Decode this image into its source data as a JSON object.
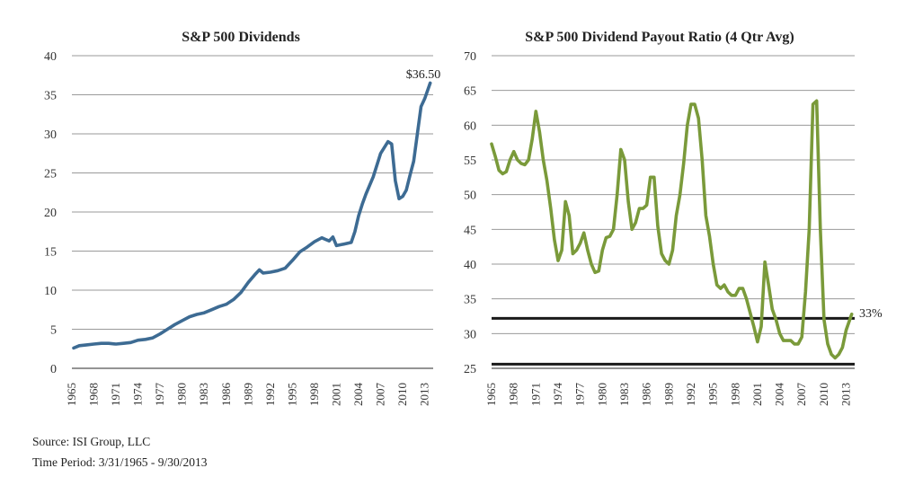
{
  "chart_data": [
    {
      "type": "line",
      "title": "S&P 500 Dividends",
      "xlabel": "",
      "ylabel": "",
      "ylim": [
        0,
        40
      ],
      "yticks": [
        "0",
        "5",
        "10",
        "15",
        "20",
        "25",
        "30",
        "35",
        "40"
      ],
      "xticks": [
        "1965",
        "1968",
        "1971",
        "1974",
        "1977",
        "1980",
        "1983",
        "1986",
        "1989",
        "1992",
        "1995",
        "1998",
        "2001",
        "2004",
        "2007",
        "2010",
        "2013"
      ],
      "grid": true,
      "color": "#3d6b93",
      "annotation": "$36.50",
      "series": [
        {
          "x": [
            1965.25,
            1966,
            1967,
            1968,
            1969,
            1970,
            1971,
            1972,
            1973,
            1974,
            1975,
            1976,
            1977,
            1978,
            1979,
            1980,
            1981,
            1982,
            1983,
            1984,
            1985,
            1986,
            1987,
            1988,
            1989,
            1990,
            1990.5,
            1991,
            1992,
            1993,
            1994,
            1995,
            1996,
            1997,
            1998,
            1999,
            1999.5,
            2000,
            2000.5,
            2001,
            2002,
            2003,
            2003.5,
            2004,
            2004.5,
            2005,
            2006,
            2007,
            2008,
            2008.5,
            2009,
            2009.5,
            2010,
            2010.5,
            2011,
            2011.5,
            2012,
            2012.5,
            2013,
            2013.75
          ],
          "y": [
            2.6,
            2.9,
            3.0,
            3.1,
            3.2,
            3.2,
            3.1,
            3.2,
            3.3,
            3.6,
            3.7,
            3.9,
            4.4,
            5.0,
            5.6,
            6.1,
            6.6,
            6.9,
            7.1,
            7.5,
            7.9,
            8.2,
            8.8,
            9.7,
            11.0,
            12.1,
            12.6,
            12.2,
            12.3,
            12.5,
            12.8,
            13.8,
            14.9,
            15.5,
            16.2,
            16.7,
            16.5,
            16.3,
            16.8,
            15.7,
            15.9,
            16.1,
            17.5,
            19.5,
            21.0,
            22.3,
            24.5,
            27.5,
            29.0,
            28.7,
            24.0,
            21.7,
            22.0,
            22.8,
            24.7,
            26.5,
            30.0,
            33.5,
            34.5,
            36.5
          ]
        }
      ]
    },
    {
      "type": "line",
      "title": "S&P 500 Dividend Payout Ratio (4 Qtr Avg)",
      "xlabel": "",
      "ylabel": "",
      "ylim": [
        25,
        70
      ],
      "yticks": [
        "25",
        "30",
        "35",
        "40",
        "45",
        "50",
        "55",
        "60",
        "65",
        "70"
      ],
      "xticks": [
        "1965",
        "1968",
        "1971",
        "1974",
        "1977",
        "1980",
        "1983",
        "1986",
        "1989",
        "1992",
        "1995",
        "1998",
        "2001",
        "2004",
        "2007",
        "2010",
        "2013"
      ],
      "grid": true,
      "color": "#7a9a3a",
      "annotation": "33%",
      "reference_lines": [
        32.2,
        25.6
      ],
      "series": [
        {
          "x": [
            1965,
            1965.5,
            1966,
            1966.5,
            1967,
            1967.5,
            1968,
            1968.5,
            1969,
            1969.5,
            1970,
            1970.5,
            1971,
            1971.5,
            1972,
            1972.5,
            1973,
            1973.5,
            1974,
            1974.5,
            1975,
            1975.5,
            1976,
            1976.5,
            1977,
            1977.5,
            1978,
            1978.5,
            1979,
            1979.5,
            1980,
            1980.5,
            1981,
            1981.5,
            1982,
            1982.5,
            1983,
            1983.5,
            1984,
            1984.5,
            1985,
            1985.5,
            1986,
            1986.5,
            1987,
            1987.5,
            1988,
            1988.5,
            1989,
            1989.5,
            1990,
            1990.5,
            1991,
            1991.5,
            1992,
            1992.5,
            1993,
            1993.5,
            1994,
            1994.5,
            1995,
            1995.5,
            1996,
            1996.5,
            1997,
            1997.5,
            1998,
            1998.5,
            1999,
            1999.5,
            2000,
            2000.5,
            2001,
            2001.5,
            2002,
            2002.5,
            2003,
            2003.5,
            2004,
            2004.5,
            2005,
            2005.5,
            2006,
            2006.5,
            2007,
            2007.5,
            2008,
            2008.5,
            2009,
            2009.5,
            2010,
            2010.5,
            2011,
            2011.5,
            2012,
            2012.5,
            2013,
            2013.75
          ],
          "y": [
            57.3,
            55.5,
            53.5,
            53.0,
            53.3,
            55.0,
            56.2,
            55.0,
            54.5,
            54.3,
            55.0,
            58.0,
            62.0,
            59.0,
            55.0,
            52.0,
            48.0,
            43.5,
            40.5,
            42.0,
            49.0,
            47.0,
            41.5,
            42.0,
            43.0,
            44.5,
            42.0,
            40.0,
            38.8,
            39.0,
            42.0,
            43.8,
            44.0,
            45.0,
            50.0,
            56.5,
            55.0,
            49.0,
            45.0,
            46.0,
            48.0,
            48.0,
            48.5,
            52.5,
            52.5,
            45.5,
            41.5,
            40.5,
            40.0,
            42.0,
            47.0,
            50.0,
            54.5,
            60.0,
            63.0,
            63.0,
            61.0,
            55.0,
            47.0,
            44.0,
            40.0,
            37.0,
            36.5,
            37.0,
            36.0,
            35.5,
            35.5,
            36.5,
            36.5,
            35.0,
            33.0,
            31.0,
            28.8,
            31.0,
            40.3,
            37.0,
            33.5,
            32.0,
            30.0,
            29.0,
            29.0,
            29.0,
            28.5,
            28.5,
            29.5,
            36.0,
            45.0,
            63.0,
            63.5,
            45.0,
            32.0,
            28.5,
            27.0,
            26.5,
            27.0,
            28.0,
            30.5,
            32.8
          ]
        }
      ]
    }
  ],
  "footer": {
    "source": "Source: ISI Group, LLC",
    "period": "Time Period: 3/31/1965 - 9/30/2013"
  }
}
